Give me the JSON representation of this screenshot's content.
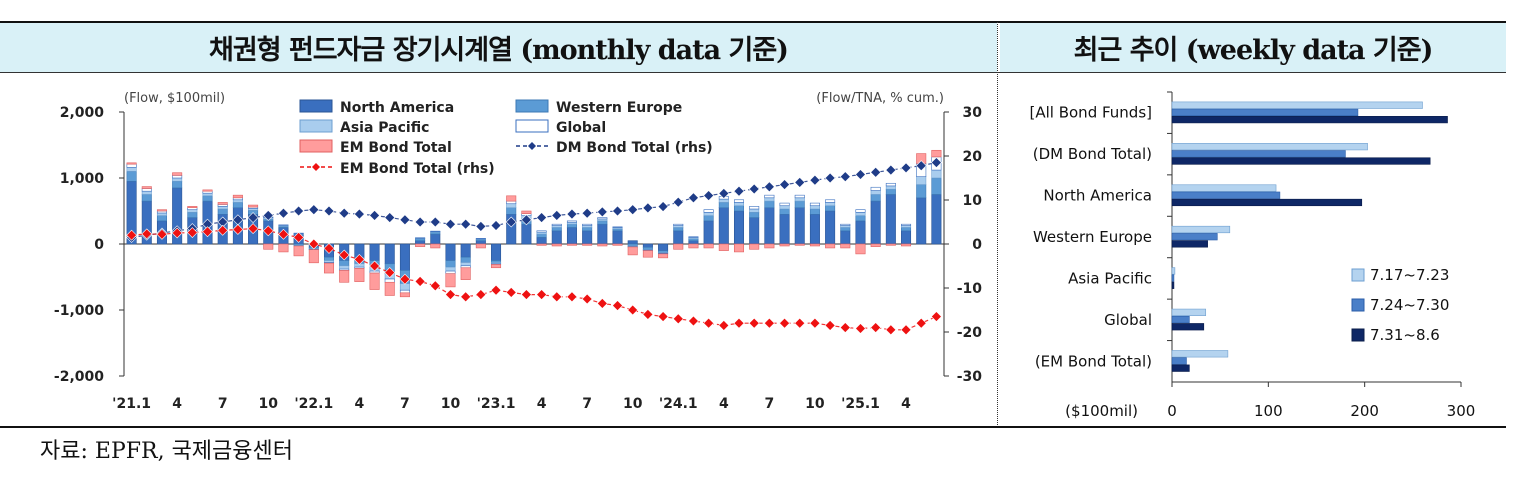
{
  "headers": {
    "left": "채권형 펀드자금 장기시계열 (monthly data 기준)",
    "right": "최근 추이 (weekly data 기준)"
  },
  "source": "자료: EPFR, 국제금융센터",
  "colors": {
    "north_america": "#3a6fbf",
    "western_europe": "#5b9bd5",
    "asia_pacific": "#a9cdee",
    "global": "#ffffff",
    "em_bond": "#ff9c9c",
    "dm_line": "#1f3c88",
    "em_line": "#ee1111",
    "week1": "#b4d3ef",
    "week2": "#4a7fc8",
    "week3": "#0e2766"
  },
  "chart_data": [
    {
      "type": "bar",
      "subtype": "stacked bar with two line series on secondary axis",
      "left_axis_label": "(Flow, $100mil)",
      "right_axis_label": "(Flow/TNA, % cum.)",
      "ylim": [
        -2000,
        2000
      ],
      "yticks": [
        "2,000",
        "1,000",
        "0",
        "-1,000",
        "-2,000"
      ],
      "y2lim": [
        -30,
        30
      ],
      "y2ticks": [
        "30",
        "20",
        "10",
        "0",
        "-10",
        "-20",
        "-30"
      ],
      "xtick_labels": [
        "'21.1",
        "4",
        "7",
        "10",
        "'22.1",
        "4",
        "7",
        "10",
        "'23.1",
        "4",
        "7",
        "10",
        "'24.1",
        "4",
        "7",
        "10",
        "'25.1",
        "4"
      ],
      "legend": [
        {
          "key": "north_america",
          "label": "North America",
          "kind": "bar"
        },
        {
          "key": "western_europe",
          "label": "Western Europe",
          "kind": "bar"
        },
        {
          "key": "asia_pacific",
          "label": "Asia Pacific",
          "kind": "bar"
        },
        {
          "key": "global",
          "label": "Global",
          "kind": "bar"
        },
        {
          "key": "em_bond",
          "label": "EM Bond Total",
          "kind": "bar"
        },
        {
          "key": "dm_line",
          "label": "DM Bond Total (rhs)",
          "kind": "line"
        },
        {
          "key": "em_line",
          "label": "EM Bond Total (rhs)",
          "kind": "line"
        }
      ],
      "months": [
        "2021-01",
        "2021-02",
        "2021-03",
        "2021-04",
        "2021-05",
        "2021-06",
        "2021-07",
        "2021-08",
        "2021-09",
        "2021-10",
        "2021-11",
        "2021-12",
        "2022-01",
        "2022-02",
        "2022-03",
        "2022-04",
        "2022-05",
        "2022-06",
        "2022-07",
        "2022-08",
        "2022-09",
        "2022-10",
        "2022-11",
        "2022-12",
        "2023-01",
        "2023-02",
        "2023-03",
        "2023-04",
        "2023-05",
        "2023-06",
        "2023-07",
        "2023-08",
        "2023-09",
        "2023-10",
        "2023-11",
        "2023-12",
        "2024-01",
        "2024-02",
        "2024-03",
        "2024-04",
        "2024-05",
        "2024-06",
        "2024-07",
        "2024-08",
        "2024-09",
        "2024-10",
        "2024-11",
        "2024-12",
        "2025-01",
        "2025-02",
        "2025-03",
        "2025-04",
        "2025-05",
        "2025-06"
      ],
      "series": [
        {
          "name": "North America",
          "values": [
            950,
            650,
            350,
            850,
            400,
            650,
            450,
            550,
            450,
            350,
            250,
            150,
            -50,
            -200,
            -250,
            -200,
            -250,
            -300,
            -400,
            50,
            150,
            -250,
            -200,
            50,
            -250,
            450,
            300,
            100,
            200,
            250,
            200,
            300,
            200,
            50,
            -50,
            -100,
            200,
            50,
            350,
            550,
            500,
            400,
            550,
            450,
            550,
            450,
            500,
            200,
            350,
            650,
            750,
            200,
            700,
            750
          ]
        },
        {
          "name": "Western Europe",
          "values": [
            150,
            100,
            80,
            100,
            80,
            80,
            80,
            80,
            60,
            30,
            20,
            -30,
            -20,
            -50,
            -80,
            -100,
            -100,
            -150,
            -200,
            30,
            30,
            -100,
            -80,
            20,
            -30,
            100,
            80,
            50,
            50,
            50,
            50,
            50,
            30,
            -30,
            -30,
            -30,
            50,
            30,
            80,
            80,
            80,
            80,
            100,
            80,
            100,
            80,
            80,
            50,
            80,
            100,
            80,
            50,
            200,
            250
          ]
        },
        {
          "name": "Asia Pacific",
          "values": [
            60,
            50,
            40,
            50,
            40,
            40,
            40,
            40,
            30,
            20,
            15,
            10,
            -10,
            -30,
            -50,
            -50,
            -60,
            -80,
            -100,
            10,
            10,
            -60,
            -50,
            10,
            -20,
            60,
            50,
            30,
            30,
            30,
            30,
            30,
            20,
            -10,
            -10,
            -10,
            30,
            20,
            50,
            50,
            50,
            50,
            50,
            50,
            50,
            50,
            50,
            30,
            50,
            60,
            50,
            30,
            120,
            120
          ]
        },
        {
          "name": "Global",
          "values": [
            50,
            40,
            30,
            40,
            30,
            30,
            30,
            30,
            20,
            10,
            5,
            5,
            -5,
            -10,
            -20,
            -20,
            -30,
            -50,
            -40,
            5,
            5,
            -40,
            -30,
            5,
            -10,
            40,
            30,
            20,
            20,
            20,
            20,
            20,
            10,
            -5,
            -10,
            -10,
            20,
            10,
            40,
            40,
            40,
            40,
            40,
            40,
            40,
            40,
            40,
            20,
            40,
            50,
            40,
            20,
            200,
            200
          ]
        },
        {
          "name": "EM Bond Total",
          "values": [
            20,
            30,
            20,
            40,
            20,
            20,
            30,
            40,
            30,
            -80,
            -120,
            -150,
            -200,
            -150,
            -180,
            -200,
            -250,
            -200,
            -60,
            -40,
            -60,
            -200,
            -180,
            -60,
            -50,
            80,
            40,
            -20,
            -30,
            -20,
            -20,
            -30,
            -20,
            -120,
            -100,
            -60,
            -80,
            -60,
            -60,
            -100,
            -120,
            -80,
            -60,
            -30,
            -20,
            -30,
            -60,
            -60,
            -150,
            -40,
            -20,
            -30,
            150,
            100
          ]
        },
        {
          "name": "DM Bond Total (rhs)",
          "values": [
            1.5,
            2,
            2.5,
            3,
            3.5,
            4.5,
            5,
            5.5,
            6,
            6.5,
            7,
            7.5,
            7.8,
            7.5,
            7,
            6.8,
            6.5,
            6,
            5.5,
            5,
            5,
            4.5,
            4.5,
            4,
            4.2,
            5,
            5.5,
            6,
            6.5,
            6.8,
            7,
            7.3,
            7.5,
            7.8,
            8.2,
            8.5,
            9.5,
            10.5,
            11,
            11.5,
            12,
            12.5,
            13,
            13.5,
            14,
            14.5,
            15,
            15.3,
            15.8,
            16.3,
            16.8,
            17.3,
            17.8,
            18.5
          ]
        },
        {
          "name": "EM Bond Total (rhs)",
          "values": [
            2,
            2.3,
            2.2,
            2.5,
            2.6,
            2.8,
            3.1,
            3.3,
            3.5,
            3,
            2.2,
            1.5,
            0,
            -1,
            -2.5,
            -3.5,
            -5,
            -6.5,
            -8,
            -8.5,
            -9.5,
            -11.5,
            -12,
            -11.5,
            -10.5,
            -11,
            -11.5,
            -11.5,
            -12,
            -12,
            -12.5,
            -13.5,
            -14,
            -15,
            -16,
            -16.5,
            -17,
            -17.5,
            -18,
            -18.5,
            -18,
            -18,
            -18,
            -18,
            -18,
            -18,
            -18.5,
            -19,
            -19.2,
            -19,
            -19.5,
            -19.5,
            -18,
            -16.5
          ]
        }
      ]
    },
    {
      "type": "bar",
      "subtype": "horizontal grouped bar",
      "xlabel": "($100mil)",
      "xlim": [
        0,
        300
      ],
      "xticks": [
        "0",
        "100",
        "200",
        "300"
      ],
      "categories": [
        "[All Bond Funds]",
        "(DM Bond Total)",
        "North America",
        "Western Europe",
        "Asia Pacific",
        "Global",
        "(EM Bond Total)"
      ],
      "series": [
        {
          "name": "7.17~7.23",
          "values": [
            260,
            203,
            108,
            60,
            3,
            35,
            58
          ]
        },
        {
          "name": "7.24~7.30",
          "values": [
            193,
            180,
            112,
            47,
            2,
            18,
            15
          ]
        },
        {
          "name": "7.31~8.6",
          "values": [
            286,
            268,
            197,
            37,
            2,
            33,
            18
          ]
        }
      ]
    }
  ]
}
